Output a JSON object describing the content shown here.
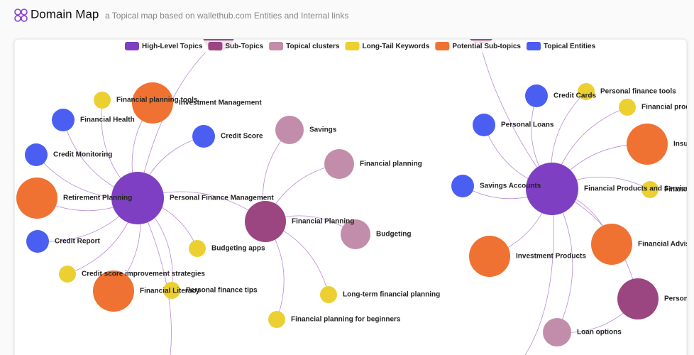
{
  "header": {
    "title": "Domain Map",
    "subtitle": "a Topical map based on wallethub.com Entities and Internal links"
  },
  "groups": [
    {
      "name": "High-Level Topics",
      "color": "#7e3fc2",
      "nodes": [
        "Personal Finance Management",
        "Financial Products and Services"
      ]
    },
    {
      "name": "Sub-Topics",
      "color": "#9b4581",
      "nodes": [
        "Financial Planning",
        "Personal Finance"
      ]
    },
    {
      "name": "Topical clusters",
      "color": "#c28daa",
      "nodes": [
        "Savings",
        "Financial planning",
        "Budgeting",
        "Loan options"
      ]
    },
    {
      "name": "Long-Tail Keywords",
      "color": "#ecd032",
      "nodes": [
        "Financial planning tools",
        "Budgeting apps",
        "Credit score improvement strategies",
        "Personal finance tips",
        "Long-term financial planning",
        "Financial planning for beginners",
        "Personal finance tools",
        "Financial products",
        "Financial"
      ]
    },
    {
      "name": "Potential Sub-topics",
      "color": "#f07232",
      "nodes": [
        "Investment Management",
        "Retirement Planning",
        "Financial Literacy",
        "Insurance",
        "Investment Products",
        "Financial Advisors"
      ]
    },
    {
      "name": "Topical Entities",
      "color": "#4a5ff2",
      "nodes": [
        "Financial Health",
        "Credit Score",
        "Credit Monitoring",
        "Credit Report",
        "Credit Cards",
        "Personal Loans",
        "Savings Accounts"
      ]
    }
  ]
}
